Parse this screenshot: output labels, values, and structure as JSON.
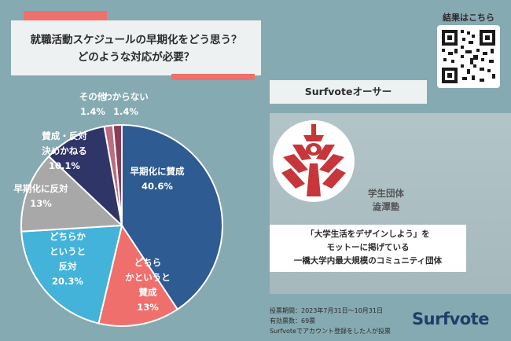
{
  "title": {
    "line1": "就職活動スケジュールの早期化をどう思う？",
    "line2": "どのような対応が必要？"
  },
  "chart_data": {
    "type": "pie",
    "categories": [
      "早期化に賛成",
      "どちらかというと賛成",
      "どちらかというと反対",
      "早期化に反対",
      "賛成・反対決めかねる",
      "その他",
      "わからない"
    ],
    "values": [
      40.6,
      13,
      20.3,
      13,
      10.1,
      1.4,
      1.4
    ],
    "unit": "%",
    "colors": [
      "#2e5b91",
      "#ef6f6c",
      "#43b3d9",
      "#a8a8a8",
      "#2f3566",
      "#bb6c80",
      "#8b3d56"
    ],
    "labels": [
      {
        "lines": [
          "早期化に賛成"
        ],
        "value": "40.6%"
      },
      {
        "lines": [
          "どちら",
          "かというと",
          "賛成"
        ],
        "value": "13%"
      },
      {
        "lines": [
          "どちらか",
          "というと",
          "反対"
        ],
        "value": "20.3%"
      },
      {
        "lines": [
          "早期化に反対"
        ],
        "value": "13%"
      },
      {
        "lines": [
          "賛成・反対",
          "決めかねる"
        ],
        "value": "10.1%"
      },
      {
        "lines": [
          "その他"
        ],
        "value": "1.4%"
      },
      {
        "lines": [
          "わからない"
        ],
        "value": "1.4%"
      }
    ]
  },
  "qr": {
    "label": "結果はこちら"
  },
  "owner": {
    "label": "Surfvoteオーサー",
    "org_line1": "学生団体",
    "org_line2": "澁澤塾",
    "desc_line1": "「大学生活をデザインしよう」を",
    "desc_line2": "モットーに掲げている",
    "desc_line3": "一橋大学内最大規模のコミュニティ団体"
  },
  "footer": {
    "period": "投票期間：2023年7月31日〜10月31日",
    "votes": "有効票数：69票",
    "note": "Surfvoteでアカウント登録をした人が投票",
    "brand": "Surfvote"
  }
}
